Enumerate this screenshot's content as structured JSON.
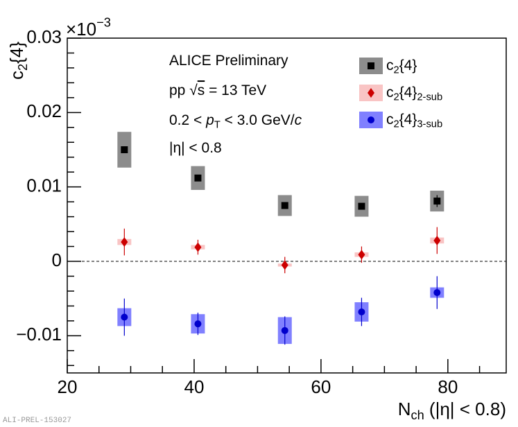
{
  "chart_data": {
    "type": "errorbar",
    "ylabel": [
      "c",
      "2",
      "{4}"
    ],
    "xlabel": [
      "N",
      "ch",
      " (|η| < 0.8)"
    ],
    "multiplier": [
      "×10",
      "−3"
    ],
    "annotations": [
      [
        "ALICE Preliminary"
      ],
      [
        "pp ",
        "√",
        "s",
        " = 13 TeV"
      ],
      [
        "0.2 < ",
        "p",
        "T",
        " < 3.0 GeV/",
        "c"
      ],
      [
        "|η| < 0.8"
      ]
    ],
    "watermark": "ALI-PREL-153027",
    "xlim": [
      20,
      89.2
    ],
    "xticks": [
      20,
      40,
      60,
      80
    ],
    "xminor_ticks": [
      25,
      30,
      35,
      45,
      50,
      55,
      65,
      70,
      75,
      85
    ],
    "ylim": [
      -0.015,
      0.03
    ],
    "yticks": [
      {
        "value": -0.01,
        "label": "−0.01"
      },
      0,
      0.01,
      0.02,
      0.03
    ],
    "yminor_ticks": [
      -0.014,
      -0.012,
      -0.008,
      -0.006,
      -0.004,
      -0.002,
      0.002,
      0.004,
      0.006,
      0.008,
      0.012,
      0.014,
      0.016,
      0.018,
      0.022,
      0.024,
      0.026,
      0.028
    ],
    "reference_line": 0,
    "series": [
      {
        "name_parts": [
          "c",
          "2",
          "{4}"
        ],
        "color": "#000000",
        "box_color": "#8c8c8c",
        "marker": "square",
        "x": [
          29,
          40.6,
          54.3,
          66.4,
          78.3
        ],
        "values": [
          0.015,
          0.0112,
          0.0075,
          0.0074,
          0.0081
        ],
        "errors": [
          0.0002,
          0.0002,
          0.0002,
          0.0002,
          0.0008
        ],
        "sys_errors": [
          0.0024,
          0.0016,
          0.0014,
          0.0014,
          0.0014
        ]
      },
      {
        "name_parts": [
          "c",
          "2",
          "{4}",
          "2-sub"
        ],
        "color": "#cc0000",
        "box_color": "#f9c4c4",
        "marker": "diamond",
        "x": [
          29,
          40.6,
          54.3,
          66.4,
          78.3
        ],
        "values": [
          0.0026,
          0.0019,
          -0.0005,
          0.0009,
          0.0028
        ],
        "errors": [
          0.0018,
          0.001,
          0.0011,
          0.0011,
          0.0018
        ],
        "sys_errors": [
          0.0004,
          0.0003,
          0.0002,
          0.0003,
          0.0004
        ]
      },
      {
        "name_parts": [
          "c",
          "2",
          "{4}",
          "3-sub"
        ],
        "color": "#0000cc",
        "box_color": "#8080ff",
        "marker": "circle",
        "x": [
          29,
          40.6,
          54.3,
          66.4,
          78.3
        ],
        "values": [
          -0.0075,
          -0.0084,
          -0.0093,
          -0.0068,
          -0.0042
        ],
        "errors": [
          0.0025,
          0.0015,
          0.0019,
          0.0019,
          0.0022
        ],
        "sys_errors": [
          0.0012,
          0.0013,
          0.0018,
          0.0013,
          0.0007
        ]
      }
    ]
  }
}
